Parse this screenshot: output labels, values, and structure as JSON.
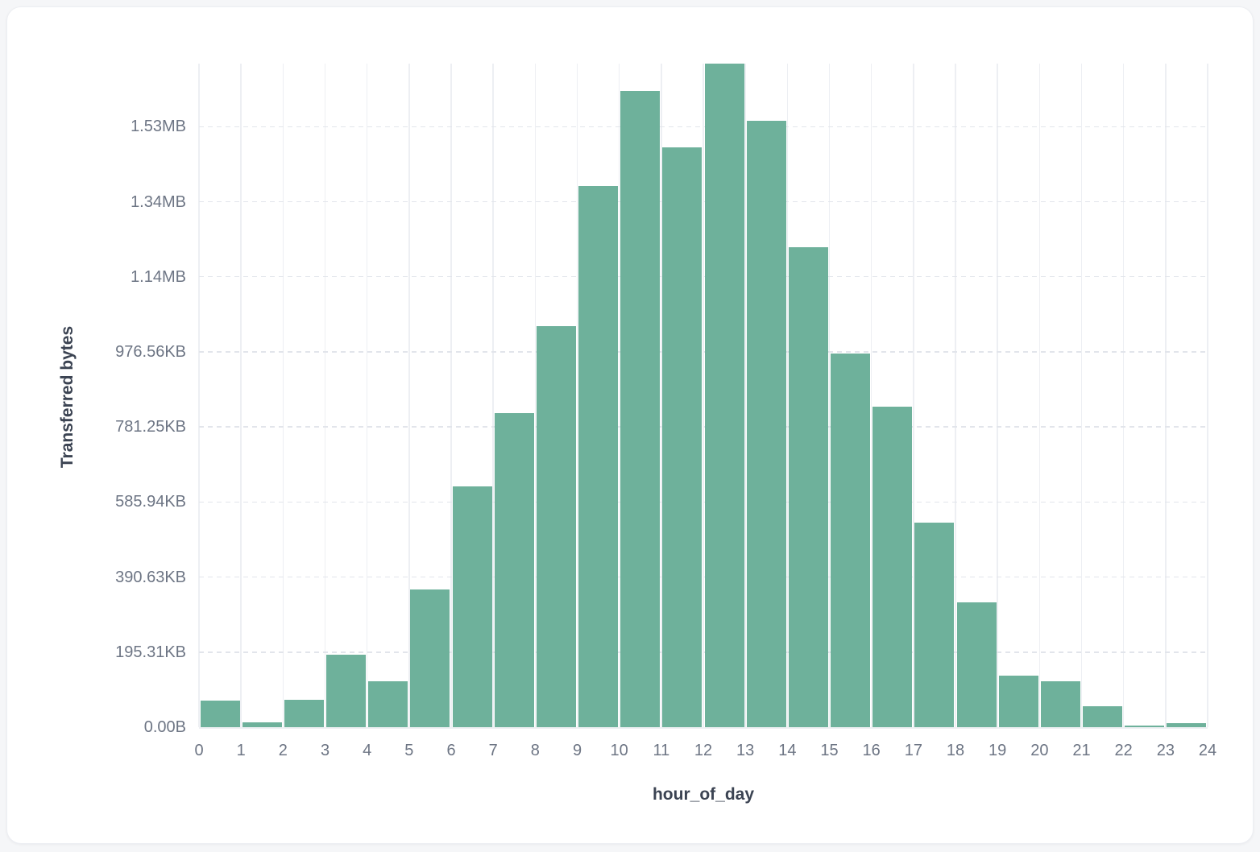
{
  "chart_data": {
    "type": "bar",
    "title": "",
    "xlabel": "hour_of_day",
    "ylabel": "Transferred bytes",
    "y_unit": "bytes",
    "categories": [
      0,
      1,
      2,
      3,
      4,
      5,
      6,
      7,
      8,
      9,
      10,
      11,
      12,
      13,
      14,
      15,
      16,
      17,
      18,
      19,
      20,
      21,
      22,
      23
    ],
    "values": [
      70000,
      12000,
      72000,
      193000,
      123000,
      367000,
      641000,
      837000,
      1068000,
      1442000,
      1695000,
      1544000,
      1768000,
      1615000,
      1279000,
      996000,
      855000,
      544000,
      332000,
      138000,
      122000,
      56000,
      4000,
      11000
    ],
    "x_tick_labels": [
      "0",
      "1",
      "2",
      "3",
      "4",
      "5",
      "6",
      "7",
      "8",
      "9",
      "10",
      "11",
      "12",
      "13",
      "14",
      "15",
      "16",
      "17",
      "18",
      "19",
      "20",
      "21",
      "22",
      "23",
      "24"
    ],
    "y_ticks": [
      {
        "label": "0.00B",
        "value": 0
      },
      {
        "label": "195.31KB",
        "value": 200000
      },
      {
        "label": "390.63KB",
        "value": 400000
      },
      {
        "label": "585.94KB",
        "value": 600000
      },
      {
        "label": "781.25KB",
        "value": 800000
      },
      {
        "label": "976.56KB",
        "value": 1000000
      },
      {
        "label": "1.14MB",
        "value": 1200000
      },
      {
        "label": "1.34MB",
        "value": 1400000
      },
      {
        "label": "1.53MB",
        "value": 1600000
      }
    ],
    "xlim": [
      0,
      24
    ],
    "ylim": [
      0,
      1768000
    ],
    "grid": "vertical-solid, horizontal-dashed",
    "legend": "none",
    "bar_color": "#6EB19B"
  }
}
